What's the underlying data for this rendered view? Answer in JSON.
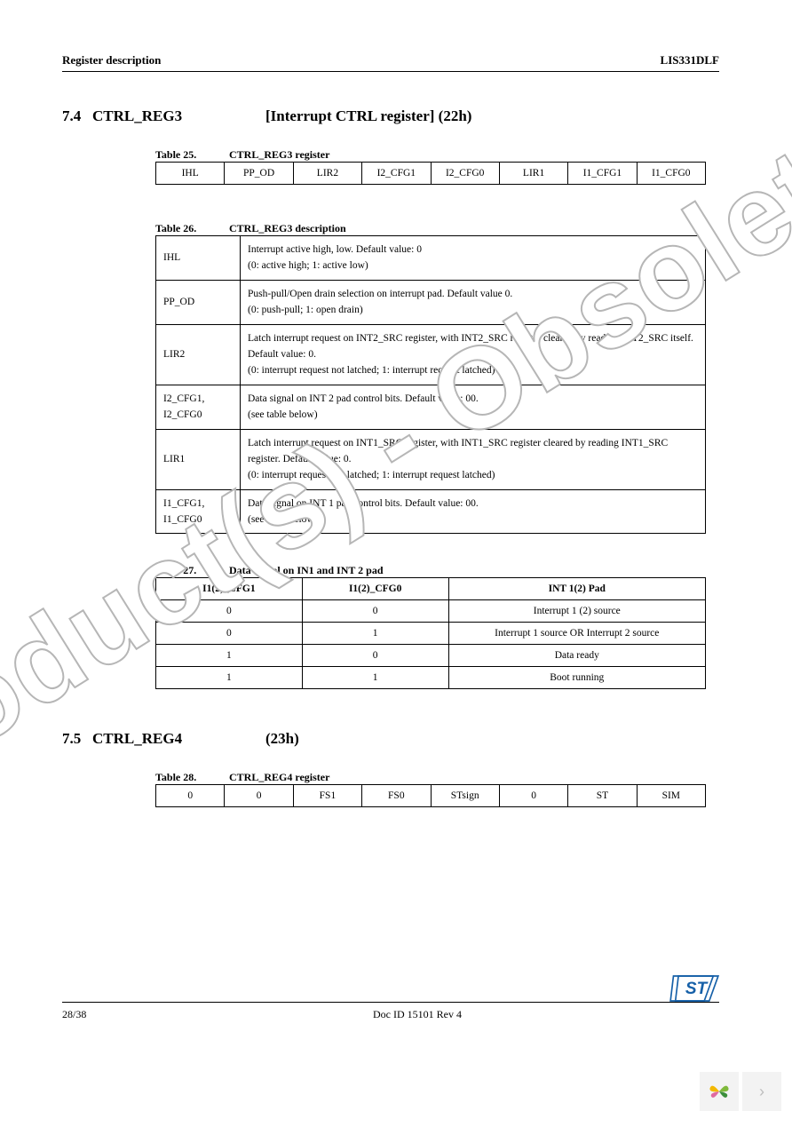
{
  "header": {
    "left": "Register description",
    "right": "LIS331DLF"
  },
  "section74": {
    "num": "7.4",
    "title": "CTRL_REG3",
    "suffix": "[Interrupt CTRL register] (22h)"
  },
  "table25": {
    "caption_num": "Table 25.",
    "caption_title": "CTRL_REG3 register",
    "cells": [
      "IHL",
      "PP_OD",
      "LIR2",
      "I2_CFG1",
      "I2_CFG0",
      "LIR1",
      "I1_CFG1",
      "I1_CFG0"
    ]
  },
  "table26": {
    "caption_num": "Table 26.",
    "caption_title": "CTRL_REG3 description",
    "rows": [
      {
        "key": "IHL",
        "val": "Interrupt active high, low. Default value: 0\n(0: active high; 1: active low)"
      },
      {
        "key": "PP_OD",
        "val": "Push-pull/Open drain selection on interrupt pad. Default value 0.\n(0: push-pull; 1: open drain)"
      },
      {
        "key": "LIR2",
        "val": "Latch interrupt request on INT2_SRC register, with INT2_SRC register cleared by reading INT2_SRC itself. Default value: 0.\n(0: interrupt request not latched; 1: interrupt request latched)"
      },
      {
        "key": "I2_CFG1,\nI2_CFG0",
        "val": "Data signal on INT 2 pad control bits. Default value: 00.\n(see table below)"
      },
      {
        "key": "LIR1",
        "val": "Latch interrupt request on INT1_SRC register, with INT1_SRC register cleared by reading INT1_SRC register. Default value: 0.\n(0: interrupt request not latched; 1: interrupt request latched)"
      },
      {
        "key": "I1_CFG1,\nI1_CFG0",
        "val": "Data signal on INT 1 pad control bits. Default value: 00.\n(see table below)"
      }
    ]
  },
  "table27": {
    "caption_num": "Table 27.",
    "caption_title": "Data signal on IN1 and INT 2 pad",
    "headers": [
      "I1(2)_CFG1",
      "I1(2)_CFG0",
      "INT 1(2) Pad"
    ],
    "rows": [
      [
        "0",
        "0",
        "Interrupt 1 (2) source"
      ],
      [
        "0",
        "1",
        "Interrupt 1 source OR Interrupt 2 source"
      ],
      [
        "1",
        "0",
        "Data ready"
      ],
      [
        "1",
        "1",
        "Boot running"
      ]
    ]
  },
  "section75": {
    "num": "7.5",
    "title": "CTRL_REG4",
    "suffix": "(23h)"
  },
  "table28": {
    "caption_num": "Table 28.",
    "caption_title": "CTRL_REG4 register",
    "cells": [
      "0",
      "0",
      "FS1",
      "FS0",
      "STsign",
      "0",
      "ST",
      "SIM"
    ]
  },
  "footer": {
    "page": "28/38",
    "doc": "Doc ID 15101 Rev 4"
  },
  "watermark": "Obsolete Product(s) - Obsolete Product(s)",
  "colors": {
    "text": "#000000",
    "watermark_stroke": "#b6b6b6",
    "pager_bg": "#f3f3f3",
    "pager_arrow": "#bdbdbd",
    "butterfly": {
      "p1": "#f3b800",
      "p2": "#7fb93a",
      "p3": "#3b8e3b",
      "p4": "#e06aa0"
    }
  }
}
